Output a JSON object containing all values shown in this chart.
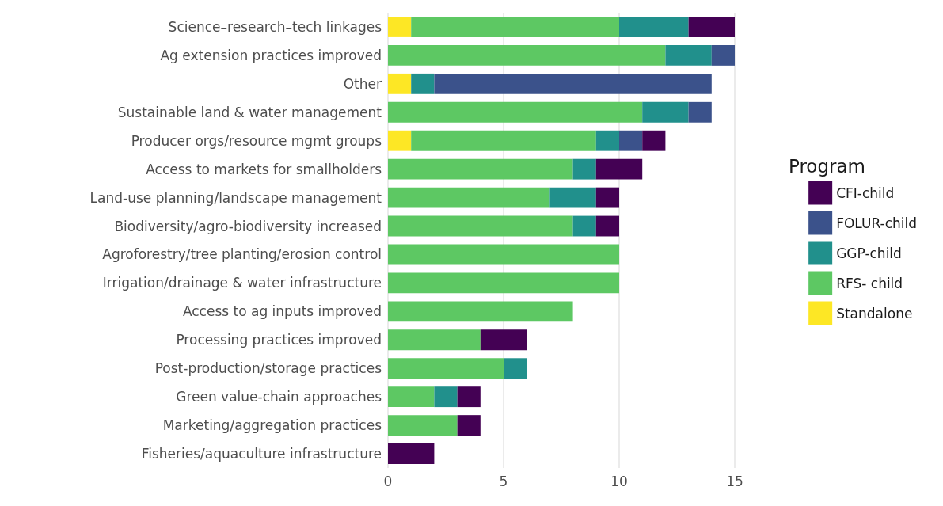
{
  "chart_data": {
    "type": "bar",
    "orientation": "horizontal",
    "stacked": true,
    "categories": [
      "Science–research–tech linkages",
      "Ag extension practices improved",
      "Other",
      "Sustainable land & water management",
      "Producer orgs/resource mgmt groups",
      "Access to markets for smallholders",
      "Land-use planning/landscape management",
      "Biodiversity/agro-biodiversity increased",
      "Agroforestry/tree planting/erosion control",
      "Irrigation/drainage & water infrastructure",
      "Access to ag inputs improved",
      "Processing practices improved",
      "Post-production/storage practices",
      "Green value-chain approaches",
      "Marketing/aggregation practices",
      "Fisheries/aquaculture infrastructure"
    ],
    "series": [
      {
        "name": "Standalone",
        "color": "#fde725",
        "values": [
          1,
          null,
          1,
          null,
          1,
          null,
          null,
          null,
          null,
          null,
          null,
          null,
          null,
          null,
          null,
          null
        ]
      },
      {
        "name": "RFS- child",
        "color": "#5dc863",
        "values": [
          9,
          12,
          null,
          11,
          8,
          8,
          7,
          8,
          10,
          10,
          8,
          4,
          5,
          2,
          3,
          null
        ]
      },
      {
        "name": "GGP-child",
        "color": "#21908c",
        "values": [
          3,
          2,
          1,
          2,
          1,
          1,
          2,
          1,
          null,
          null,
          null,
          null,
          1,
          1,
          null,
          null
        ]
      },
      {
        "name": "FOLUR-child",
        "color": "#3b528b",
        "values": [
          null,
          1,
          12,
          1,
          1,
          null,
          null,
          null,
          null,
          null,
          null,
          null,
          null,
          null,
          null,
          null
        ]
      },
      {
        "name": "CFI-child",
        "color": "#440154",
        "values": [
          2,
          null,
          null,
          null,
          1,
          2,
          1,
          1,
          null,
          null,
          null,
          2,
          null,
          1,
          1,
          2
        ]
      }
    ],
    "xlim": [
      0,
      15
    ],
    "xticks": [
      0,
      5,
      10,
      15
    ],
    "grid": "x",
    "legend": "right",
    "legend_title": "Program"
  }
}
